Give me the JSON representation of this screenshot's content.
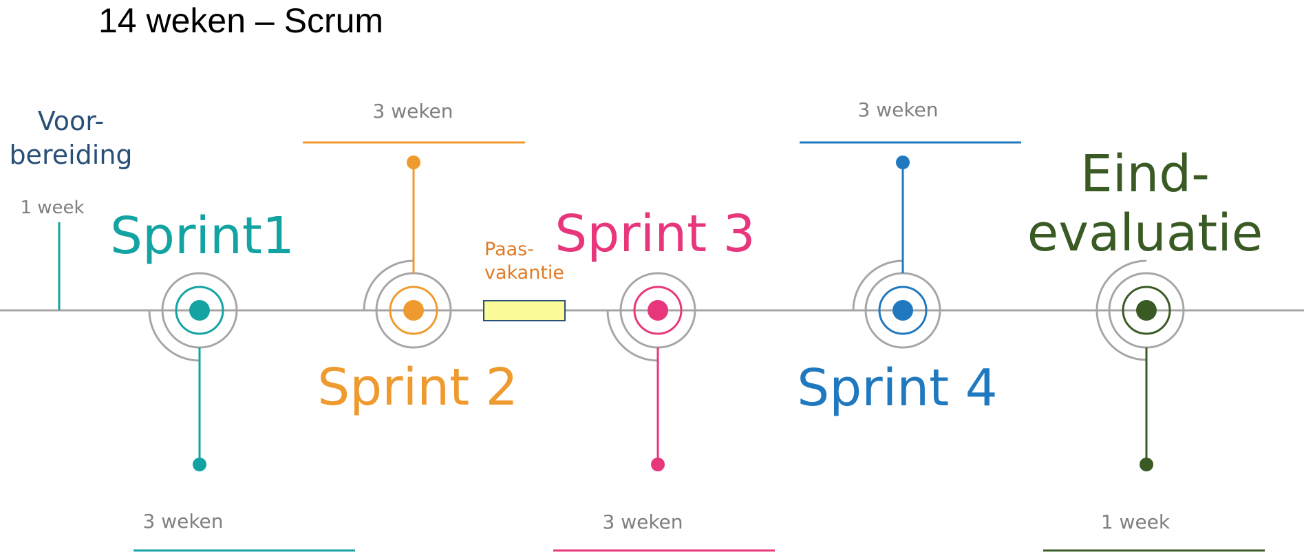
{
  "title": "14 weken – Scrum",
  "colors": {
    "axis": "#a6a6a6",
    "teal": "#13a3a3",
    "orange": "#ef9a2e",
    "pink": "#e8367c",
    "blue": "#2079bf",
    "green": "#3a5a24",
    "navy": "#2a4f77",
    "grey_text": "#7f7f7f",
    "vacation_fill": "#fbfb99",
    "vacation_border": "#2a4f77"
  },
  "phases": {
    "prep": {
      "label_line1": "Voor-",
      "label_line2": "bereiding",
      "duration": "1 week"
    },
    "sprint1": {
      "label": "Sprint1",
      "duration": "3 weken"
    },
    "sprint2": {
      "label": "Sprint 2",
      "duration": "3 weken"
    },
    "vacation": {
      "label_line1": "Paas-",
      "label_line2": "vakantie"
    },
    "sprint3": {
      "label": "Sprint 3",
      "duration": "3 weken"
    },
    "sprint4": {
      "label": "Sprint 4",
      "duration": "3 weken"
    },
    "final": {
      "label_line1": "Eind-",
      "label_line2": "evaluatie",
      "duration": "1 week"
    }
  }
}
